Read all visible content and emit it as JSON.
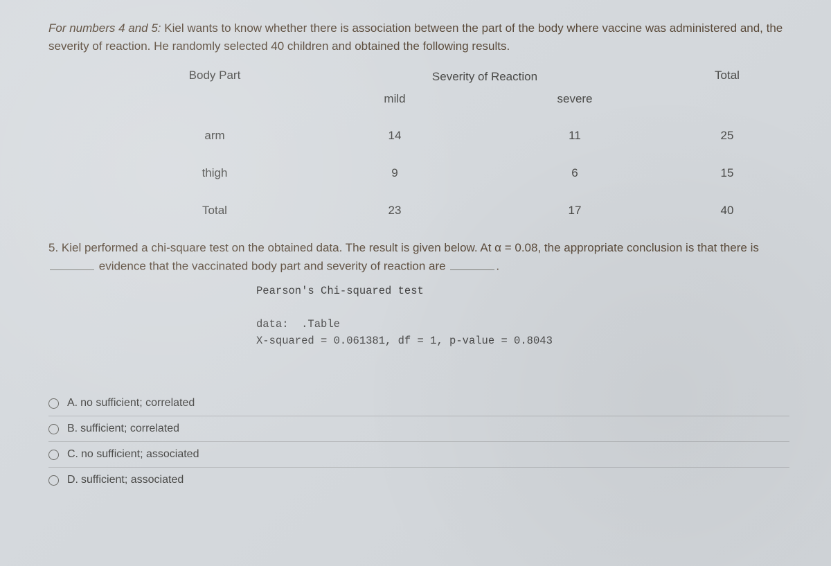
{
  "intro": {
    "italic_prefix": "For numbers 4 and 5:",
    "rest": " Kiel wants to know whether there is association between the part of the body where vaccine was administered and, the severity of reaction. He randomly selected 40 children and obtained the following results."
  },
  "table": {
    "super_header": "Severity of Reaction",
    "col_body_part": "Body Part",
    "col_mild": "mild",
    "col_severe": "severe",
    "col_total": "Total",
    "rows": [
      {
        "label": "arm",
        "mild": "14",
        "severe": "11",
        "total": "25"
      },
      {
        "label": "thigh",
        "mild": "9",
        "severe": "6",
        "total": "15"
      },
      {
        "label": "Total",
        "mild": "23",
        "severe": "17",
        "total": "40"
      }
    ]
  },
  "q5": {
    "lead": "5. Kiel performed a chi-square test on the obtained data. The result is given below. At α = 0.08, the appropriate conclusion is that there is",
    "mid": "evidence that the vaccinated body part and severity of reaction are",
    "tail": "."
  },
  "code": {
    "title": "Pearson's Chi-squared test",
    "line1": "data:  .Table",
    "line2": "X-squared = 0.061381, df = 1, p-value = 0.8043"
  },
  "options": {
    "a": {
      "letter": "A.",
      "text": "no sufficient; correlated"
    },
    "b": {
      "letter": "B.",
      "text": "sufficient; correlated"
    },
    "c": {
      "letter": "C.",
      "text": "no sufficient; associated"
    },
    "d": {
      "letter": "D.",
      "text": "sufficient; associated"
    }
  },
  "colors": {
    "text": "#4a4a48",
    "accent_text": "#5a4a3a",
    "divider": "rgba(120,120,120,.35)",
    "radio_border": "#6a6a66"
  }
}
